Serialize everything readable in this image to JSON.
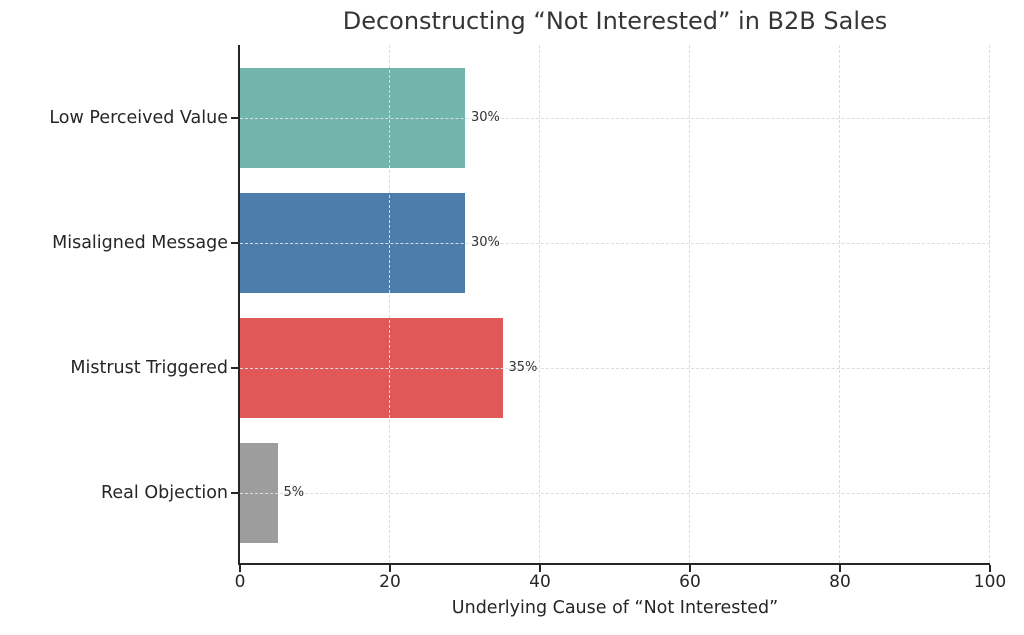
{
  "chart_data": {
    "type": "bar",
    "orientation": "horizontal",
    "title": "Deconstructing “Not Interested” in B2B Sales",
    "xlabel": "Underlying Cause of “Not Interested”",
    "ylabel": "",
    "categories": [
      "Low Perceived Value",
      "Misaligned Message",
      "Mistrust Triggered",
      "Real Objection"
    ],
    "values": [
      30,
      30,
      35,
      5
    ],
    "value_labels": [
      "30%",
      "30%",
      "35%",
      "5%"
    ],
    "bar_colors": [
      "#72b5ac",
      "#4d7eab",
      "#e15859",
      "#9d9d9d"
    ],
    "xlim": [
      0,
      100
    ],
    "xticks": [
      0,
      20,
      40,
      60,
      80,
      100
    ],
    "xtick_labels": [
      "0",
      "20",
      "40",
      "60",
      "80",
      "100"
    ],
    "grid": "dashed, both axes, drawn over bars",
    "legend": "none",
    "colors": {
      "grid": "#dcdcdc",
      "spine": "#262626",
      "text": "#262626",
      "title": "#363636",
      "background": "#ffffff"
    }
  }
}
